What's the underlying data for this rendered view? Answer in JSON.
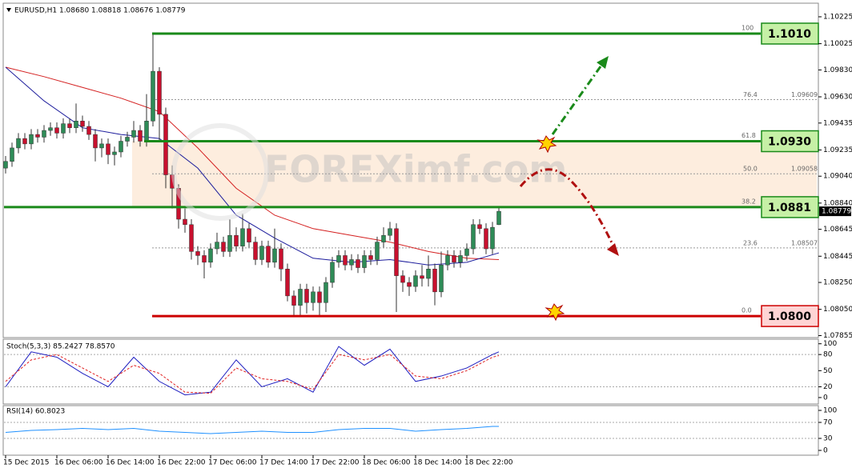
{
  "chart_data": [
    {
      "type": "candlestick",
      "title": "EURUSD,H1 1.08680 1.08818 1.08676 1.08779",
      "watermark": "FOREXimf.com",
      "categories": [
        "15 Dec 2015",
        null,
        null,
        null,
        null,
        null,
        null,
        null,
        "16 Dec 06:00",
        null,
        null,
        null,
        null,
        null,
        null,
        null,
        "16 Dec 14:00",
        null,
        null,
        null,
        null,
        null,
        null,
        null,
        "16 Dec 22:00",
        null,
        null,
        null,
        null,
        null,
        null,
        null,
        "17 Dec 06:00",
        null,
        null,
        null,
        null,
        null,
        null,
        null,
        "17 Dec 14:00",
        null,
        null,
        null,
        null,
        null,
        null,
        null,
        "17 Dec 22:00",
        null,
        null,
        null,
        null,
        null,
        null,
        null,
        "18 Dec 06:00",
        null,
        null,
        null,
        null,
        null,
        null,
        null,
        "18 Dec 14:00",
        null,
        null,
        null,
        null,
        null,
        null,
        null,
        "18 Dec 22:00",
        null,
        null,
        null,
        null,
        null
      ],
      "open": [
        1.091,
        1.0915,
        1.0925,
        1.0932,
        1.0928,
        1.0935,
        1.0933,
        1.0938,
        1.094,
        1.0936,
        1.0943,
        1.094,
        1.0945,
        1.0941,
        1.0935,
        1.0925,
        1.0928,
        1.092,
        1.0922,
        1.093,
        1.0933,
        1.0938,
        1.093,
        1.0945,
        1.0982,
        1.095,
        1.0905,
        1.0895,
        1.0872,
        1.0868,
        1.0848,
        1.0845,
        1.084,
        1.085,
        1.0855,
        1.0848,
        1.086,
        1.0852,
        1.0865,
        1.0855,
        1.0842,
        1.0852,
        1.084,
        1.085,
        1.0835,
        1.0815,
        1.0808,
        1.082,
        1.081,
        1.0818,
        1.081,
        1.0825,
        1.084,
        1.0845,
        1.0838,
        1.0842,
        1.0836,
        1.0845,
        1.0842,
        1.0855,
        1.086,
        1.0865,
        1.083,
        1.0825,
        1.0822,
        1.083,
        1.0828,
        1.0835,
        1.0818,
        1.0838,
        1.0845,
        1.084,
        1.0845,
        1.085,
        1.0868,
        1.0865,
        1.085,
        1.0868
      ],
      "high": [
        1.0919,
        1.0929,
        1.0936,
        1.0936,
        1.0939,
        1.0939,
        1.0942,
        1.0944,
        1.0944,
        1.0947,
        1.0947,
        1.0958,
        1.0949,
        1.0945,
        1.0939,
        1.0932,
        1.0932,
        1.0926,
        1.0934,
        1.0937,
        1.0945,
        1.0942,
        1.0965,
        1.101,
        1.0985,
        1.0955,
        1.0912,
        1.0898,
        1.088,
        1.0872,
        1.0852,
        1.0849,
        1.0854,
        1.0862,
        1.0859,
        1.0872,
        1.0866,
        1.0876,
        1.0869,
        1.0859,
        1.0856,
        1.0856,
        1.0865,
        1.0854,
        1.0839,
        1.0819,
        1.0824,
        1.0824,
        1.0822,
        1.0822,
        1.0829,
        1.0844,
        1.0849,
        1.0849,
        1.0846,
        1.0846,
        1.0849,
        1.0849,
        1.0859,
        1.0866,
        1.087,
        1.0869,
        1.0834,
        1.0829,
        1.0834,
        1.0838,
        1.0845,
        1.0839,
        1.0848,
        1.0849,
        1.0849,
        1.0849,
        1.0854,
        1.0872,
        1.0872,
        1.0869,
        1.087,
        1.08818
      ],
      "low": [
        1.0906,
        1.0911,
        1.0921,
        1.0924,
        1.0924,
        1.0929,
        1.0929,
        1.0934,
        1.0932,
        1.0932,
        1.0936,
        1.0936,
        1.0937,
        1.0931,
        1.0915,
        1.0918,
        1.0913,
        1.0912,
        1.0918,
        1.0926,
        1.0929,
        1.0926,
        1.0926,
        1.0941,
        1.093,
        1.0895,
        1.088,
        1.0865,
        1.0862,
        1.0842,
        1.0838,
        1.0828,
        1.0836,
        1.0846,
        1.0844,
        1.0844,
        1.0848,
        1.0848,
        1.0851,
        1.0838,
        1.0838,
        1.0836,
        1.0836,
        1.0826,
        1.0811,
        1.08,
        1.08,
        1.0802,
        1.0804,
        1.08,
        1.0803,
        1.0821,
        1.0836,
        1.0834,
        1.0834,
        1.0832,
        1.0832,
        1.0838,
        1.0838,
        1.0851,
        1.0856,
        1.0803,
        1.0818,
        1.0815,
        1.0818,
        1.0822,
        1.0822,
        1.0808,
        1.0814,
        1.0834,
        1.0836,
        1.0836,
        1.0841,
        1.0846,
        1.0861,
        1.0846,
        1.0846,
        1.08676
      ],
      "close": [
        1.0915,
        1.0925,
        1.0932,
        1.0928,
        1.0935,
        1.0933,
        1.0938,
        1.094,
        1.0936,
        1.0943,
        1.094,
        1.0945,
        1.0941,
        1.0935,
        1.0925,
        1.0928,
        1.092,
        1.0922,
        1.093,
        1.0933,
        1.0938,
        1.093,
        1.0945,
        1.0982,
        1.095,
        1.0905,
        1.0895,
        1.0872,
        1.0868,
        1.0848,
        1.0845,
        1.084,
        1.085,
        1.0855,
        1.0848,
        1.086,
        1.0852,
        1.0865,
        1.0855,
        1.0842,
        1.0852,
        1.084,
        1.085,
        1.0835,
        1.0815,
        1.0808,
        1.082,
        1.081,
        1.0818,
        1.081,
        1.0825,
        1.084,
        1.0845,
        1.0838,
        1.0842,
        1.0836,
        1.0845,
        1.0842,
        1.0855,
        1.086,
        1.0865,
        1.083,
        1.0825,
        1.0822,
        1.083,
        1.0828,
        1.0835,
        1.0818,
        1.0838,
        1.0845,
        1.084,
        1.0845,
        1.085,
        1.0868,
        1.0865,
        1.085,
        1.0866,
        1.08779
      ],
      "up_color": "#2e8b57",
      "down_color": "#c8102e",
      "series": [
        {
          "color": "#d42020",
          "x": [
            0,
            6,
            12,
            18,
            24,
            30,
            36,
            42,
            48,
            54,
            60,
            66,
            72,
            77
          ],
          "values": [
            1.0985,
            1.0978,
            1.097,
            1.0962,
            1.0952,
            1.0925,
            1.0895,
            1.0875,
            1.0865,
            1.086,
            1.0855,
            1.0848,
            1.0843,
            1.0842
          ]
        },
        {
          "color": "#1c1c9c",
          "x": [
            0,
            6,
            12,
            18,
            24,
            30,
            36,
            42,
            48,
            54,
            60,
            66,
            72,
            77
          ],
          "values": [
            1.0985,
            1.096,
            1.094,
            1.0935,
            1.0932,
            1.091,
            1.0875,
            1.0858,
            1.0843,
            1.084,
            1.0842,
            1.0838,
            1.084,
            1.0847
          ]
        }
      ],
      "levels": [
        {
          "value": 1.101,
          "label": "1.1010",
          "fib": "100",
          "color": "#1a8a1a",
          "box": "#c6f0a6"
        },
        {
          "value": 1.093,
          "label": "1.0930",
          "fib": "61.8",
          "color": "#1a8a1a",
          "box": "#c6f0a6"
        },
        {
          "value": 1.0881,
          "label": "1.0881",
          "fib": "38.2",
          "color": "#1a8a1a",
          "box": "#c6f0a6"
        },
        {
          "value": 1.08,
          "label": "1.0800",
          "fib": "0.0",
          "color": "#cc0000",
          "box": "#ffd4d4"
        }
      ],
      "fib_dotted": [
        {
          "level": "76.4",
          "price": 1.09609
        },
        {
          "level": "50.0",
          "price": 1.09058
        },
        {
          "level": "23.6",
          "price": 1.08507
        }
      ],
      "ylim": [
        1.0784,
        1.1032
      ],
      "yticks": [
        1.10225,
        1.10025,
        {
          "value": 1.0983,
          "label": "1.09830"
        },
        {
          "value": 1.0963,
          "label": "1.09630"
        },
        1.09435,
        1.09235,
        {
          "value": 1.0904,
          "label": "1.09040"
        },
        {
          "value": 1.0884,
          "label": "1.08840"
        },
        1.08645,
        1.08445,
        {
          "value": 1.0825,
          "label": "1.08250"
        },
        {
          "value": 1.0805,
          "label": "1.08050"
        },
        1.07855
      ]
    },
    {
      "type": "line",
      "title": "Stoch(5,3,3) 85.2427 78.8570",
      "x": [
        0,
        4,
        8,
        12,
        16,
        20,
        24,
        28,
        32,
        36,
        40,
        44,
        48,
        52,
        56,
        60,
        64,
        68,
        72,
        76,
        77
      ],
      "series": [
        {
          "color": "#1c1cc0",
          "values": [
            20,
            85,
            75,
            45,
            20,
            75,
            30,
            5,
            10,
            70,
            20,
            35,
            10,
            95,
            60,
            90,
            30,
            40,
            55,
            80,
            85
          ]
        },
        {
          "color": "#e02020",
          "dashed": true,
          "values": [
            30,
            70,
            80,
            55,
            30,
            60,
            45,
            10,
            8,
            55,
            35,
            30,
            15,
            80,
            70,
            80,
            40,
            35,
            50,
            75,
            78
          ]
        }
      ],
      "ylim": [
        -12,
        107
      ],
      "yticks": [
        0,
        20,
        50,
        80,
        100
      ],
      "levels": [
        20,
        80
      ]
    },
    {
      "type": "line",
      "title": "RSI(14) 60.8023",
      "x": [
        0,
        4,
        8,
        12,
        16,
        20,
        24,
        28,
        32,
        36,
        40,
        44,
        48,
        52,
        56,
        60,
        64,
        68,
        72,
        76,
        77
      ],
      "series": [
        {
          "color": "#1e90ff",
          "values": [
            45,
            50,
            52,
            55,
            52,
            55,
            48,
            45,
            42,
            45,
            48,
            45,
            45,
            52,
            55,
            55,
            48,
            52,
            55,
            60,
            60
          ]
        }
      ],
      "ylim": [
        -10,
        110
      ],
      "yticks": [
        0,
        30,
        70,
        100
      ],
      "levels": [
        30,
        70
      ]
    }
  ]
}
